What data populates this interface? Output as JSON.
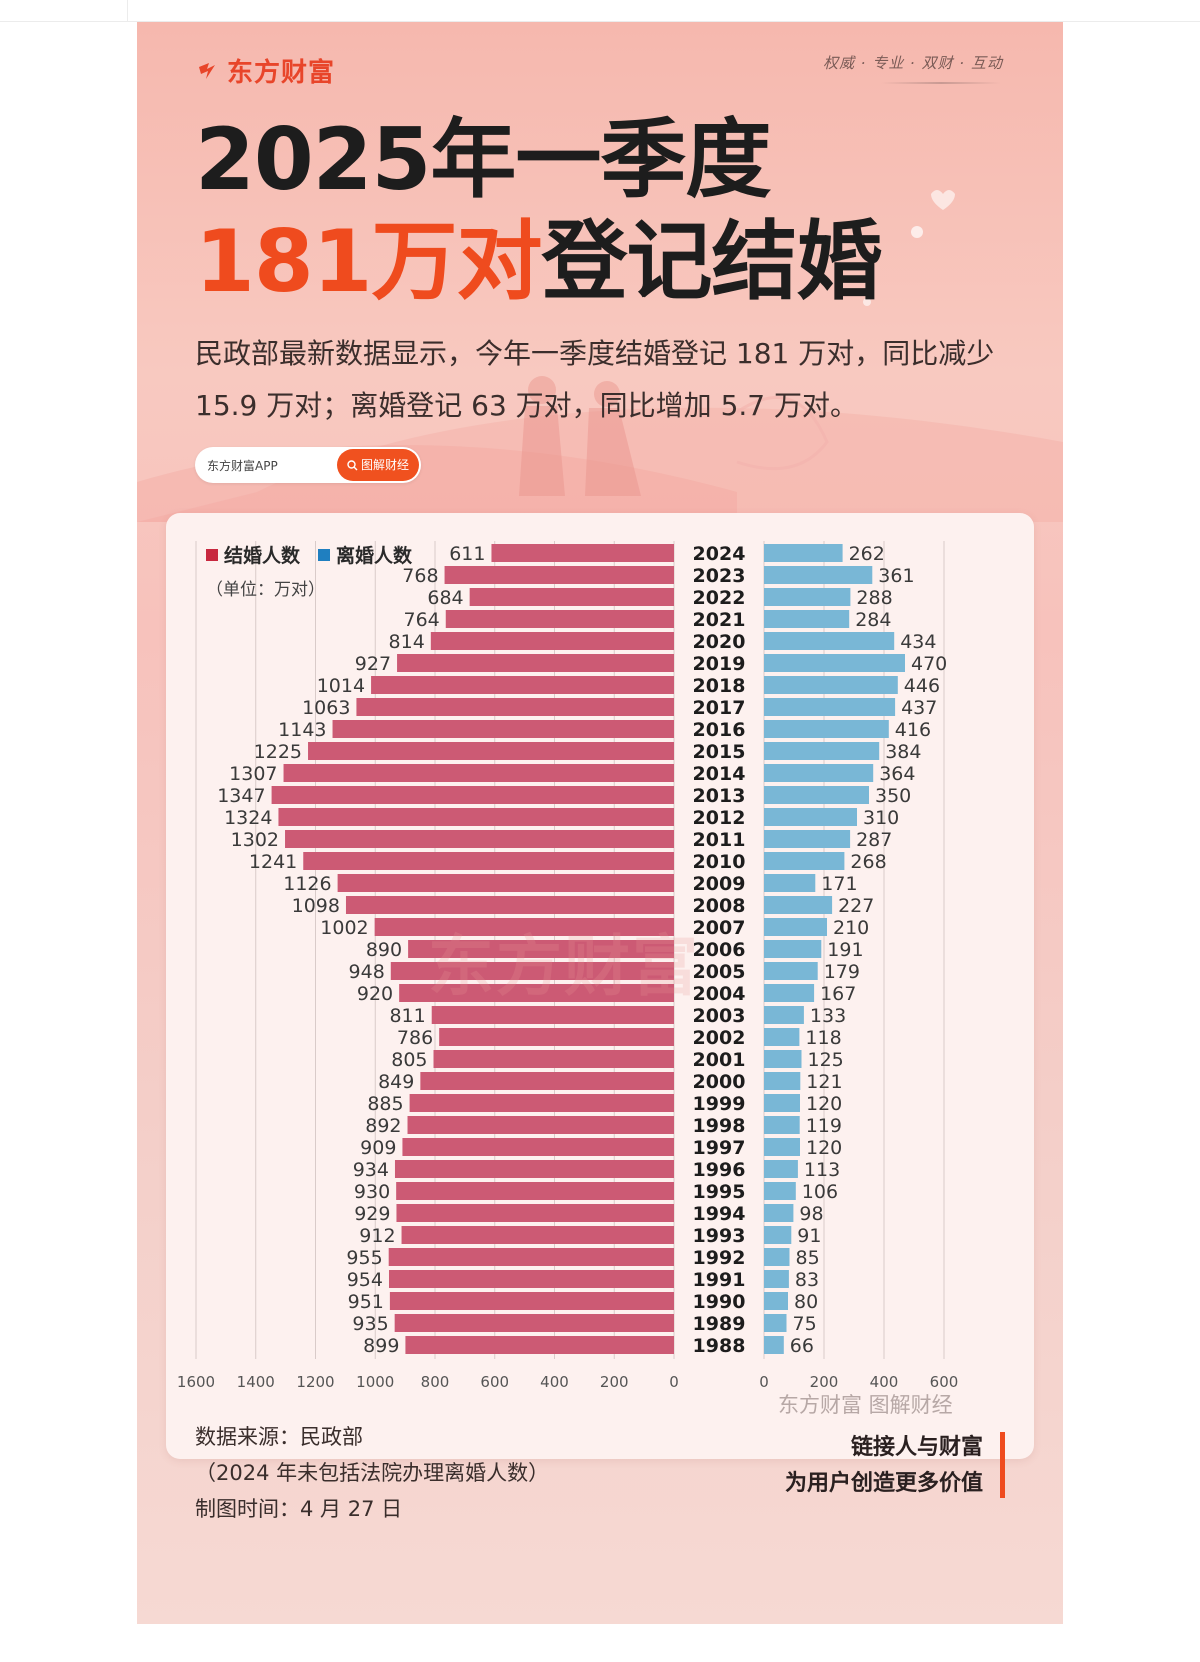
{
  "brand": {
    "logo_text": "东方财富",
    "slogan": "权威 · 专业 · 双财 · 互动"
  },
  "title": {
    "line1": "2025年一季度",
    "line2_highlight": "181万对",
    "line2_rest": "登记结婚"
  },
  "description": "民政部最新数据显示，今年一季度结婚登记 181 万对，同比减少 15.9 万对；离婚登记 63 万对，同比增加 5.7 万对。",
  "app_pill": {
    "app_label": "东方财富APP",
    "search_label": "图解财经"
  },
  "colors": {
    "marriage": "#cc5a74",
    "divorce": "#79b7d6",
    "accent": "#ef4b1e",
    "legend_marriage": "#c8283f",
    "legend_divorce": "#1f7fc0"
  },
  "chart_data": {
    "type": "bar",
    "orientation": "horizontal-butterfly",
    "legend": [
      "结婚人数",
      "离婚人数"
    ],
    "legend_placement": "top-left",
    "unit_label": "（单位：万对）",
    "categories": [
      "2024",
      "2023",
      "2022",
      "2021",
      "2020",
      "2019",
      "2018",
      "2017",
      "2016",
      "2015",
      "2014",
      "2013",
      "2012",
      "2011",
      "2010",
      "2009",
      "2008",
      "2007",
      "2006",
      "2005",
      "2004",
      "2003",
      "2002",
      "2001",
      "2000",
      "1999",
      "1998",
      "1997",
      "1996",
      "1995",
      "1994",
      "1993",
      "1992",
      "1991",
      "1990",
      "1989",
      "1988"
    ],
    "series": [
      {
        "name": "结婚人数",
        "values": [
          611,
          768,
          684,
          764,
          814,
          927,
          1014,
          1063,
          1143,
          1225,
          1307,
          1347,
          1324,
          1302,
          1241,
          1126,
          1098,
          1002,
          890,
          948,
          920,
          811,
          786,
          805,
          849,
          885,
          892,
          909,
          934,
          930,
          929,
          912,
          955,
          954,
          951,
          935,
          899
        ]
      },
      {
        "name": "离婚人数",
        "values": [
          262,
          361,
          288,
          284,
          434,
          470,
          446,
          437,
          416,
          384,
          364,
          350,
          310,
          287,
          268,
          171,
          227,
          210,
          191,
          179,
          167,
          133,
          118,
          125,
          121,
          120,
          119,
          120,
          113,
          106,
          98,
          91,
          85,
          83,
          80,
          75,
          66
        ]
      }
    ],
    "left_axis": {
      "ticks": [
        1600,
        1400,
        1200,
        1000,
        800,
        600,
        400,
        200,
        0
      ],
      "range": [
        0,
        1600
      ]
    },
    "right_axis": {
      "ticks": [
        0,
        200,
        400,
        600
      ],
      "range": [
        0,
        600
      ]
    },
    "grid": true
  },
  "watermark": "东方财富",
  "chart_source_mark": "东方财富 图解财经",
  "footer": {
    "source": "数据来源：民政部",
    "note": "（2024 年未包括法院办理离婚人数）",
    "date": "制图时间：4 月 27 日",
    "tagline1": "链接人与财富",
    "tagline2": "为用户创造更多价值"
  }
}
